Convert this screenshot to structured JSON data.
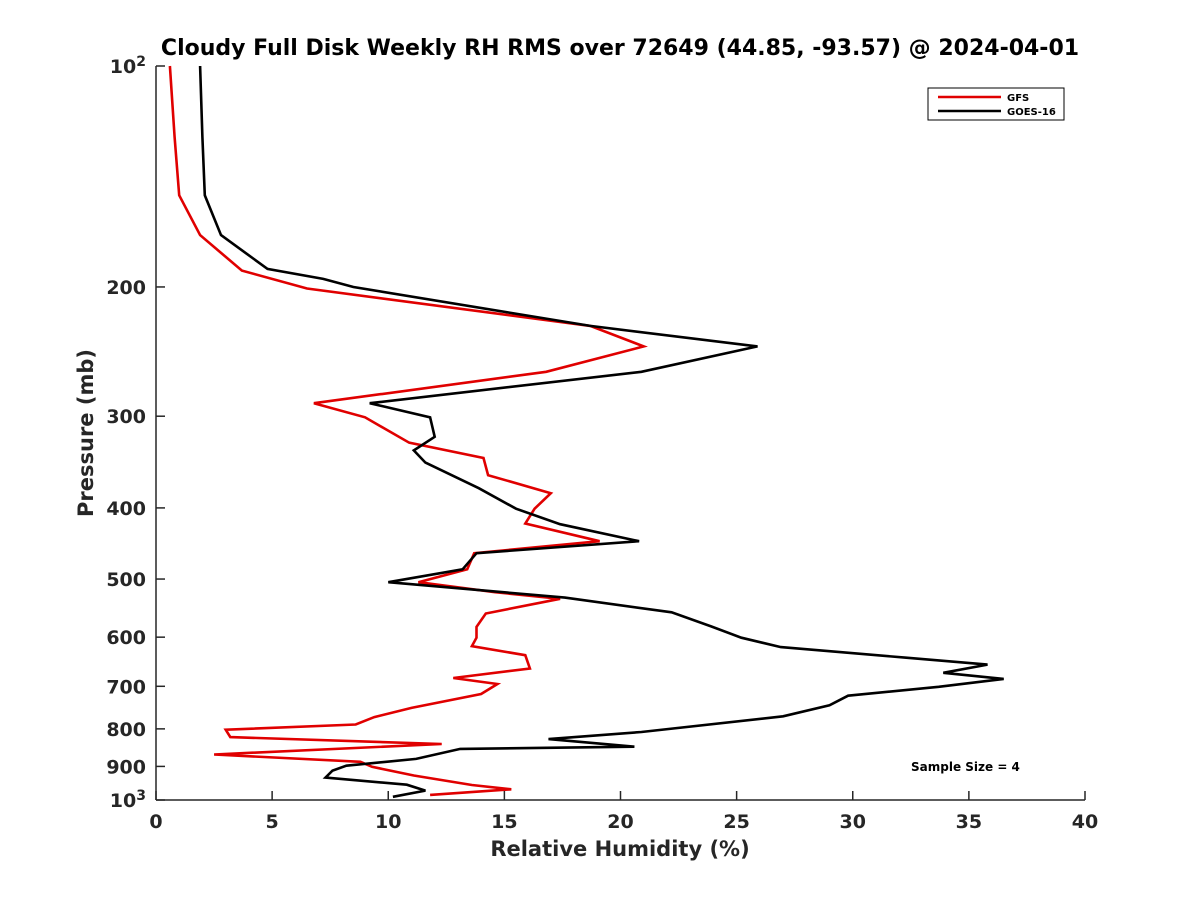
{
  "chart_data": {
    "type": "line",
    "title": "Cloudy Full Disk Weekly RH RMS over 72649 (44.85, -93.57) @ 2024-04-01",
    "xlabel": "Relative Humidity (%)",
    "ylabel": "Pressure (mb)",
    "xlim": [
      0,
      40
    ],
    "ylim": [
      100,
      1000
    ],
    "y_scale": "log",
    "y_reversed": true,
    "grid": false,
    "legend_position": "top-right",
    "annotation": "Sample Size = 4",
    "x_ticks": [
      "0",
      "5",
      "10",
      "15",
      "20",
      "25",
      "30",
      "35",
      "40"
    ],
    "y_ticks": [
      {
        "value": 100,
        "label": "10",
        "sup": "2"
      },
      {
        "value": 200,
        "label": "200",
        "sup": ""
      },
      {
        "value": 300,
        "label": "300",
        "sup": ""
      },
      {
        "value": 400,
        "label": "400",
        "sup": ""
      },
      {
        "value": 500,
        "label": "500",
        "sup": ""
      },
      {
        "value": 600,
        "label": "600",
        "sup": ""
      },
      {
        "value": 700,
        "label": "700",
        "sup": ""
      },
      {
        "value": 800,
        "label": "800",
        "sup": ""
      },
      {
        "value": 900,
        "label": "900",
        "sup": ""
      },
      {
        "value": 1000,
        "label": "10",
        "sup": "3"
      }
    ],
    "series": [
      {
        "name": "GFS",
        "color": "#e00000",
        "points": [
          [
            0.6,
            100
          ],
          [
            0.8,
            125
          ],
          [
            1.0,
            150
          ],
          [
            1.9,
            170
          ],
          [
            3.7,
            190
          ],
          [
            6.5,
            201
          ],
          [
            18.7,
            226
          ],
          [
            21.0,
            241
          ],
          [
            16.8,
            261
          ],
          [
            6.8,
            288
          ],
          [
            9.0,
            301
          ],
          [
            10.9,
            326
          ],
          [
            14.1,
            342
          ],
          [
            14.3,
            361
          ],
          [
            17.0,
            382
          ],
          [
            16.3,
            401
          ],
          [
            15.9,
            420
          ],
          [
            19.1,
            444
          ],
          [
            13.7,
            461
          ],
          [
            13.4,
            485
          ],
          [
            11.3,
            505
          ],
          [
            14.6,
            521
          ],
          [
            17.4,
            532
          ],
          [
            14.2,
            557
          ],
          [
            13.8,
            581
          ],
          [
            13.8,
            601
          ],
          [
            13.6,
            617
          ],
          [
            15.9,
            635
          ],
          [
            16.1,
            662
          ],
          [
            12.8,
            682
          ],
          [
            14.7,
            695
          ],
          [
            14.0,
            717
          ],
          [
            11.0,
            749
          ],
          [
            9.4,
            771
          ],
          [
            8.6,
            789
          ],
          [
            3.0,
            802
          ],
          [
            3.2,
            821
          ],
          [
            12.3,
            839
          ],
          [
            2.5,
            867
          ],
          [
            8.8,
            887
          ],
          [
            9.3,
            901
          ],
          [
            11.1,
            926
          ],
          [
            13.6,
            954
          ],
          [
            15.3,
            967
          ],
          [
            11.8,
            984
          ]
        ]
      },
      {
        "name": "GOES-16",
        "color": "#000000",
        "points": [
          [
            1.9,
            100
          ],
          [
            2.0,
            125
          ],
          [
            2.1,
            150
          ],
          [
            2.8,
            170
          ],
          [
            4.8,
            189
          ],
          [
            7.2,
            195
          ],
          [
            8.5,
            200
          ],
          [
            18.7,
            226
          ],
          [
            25.9,
            241
          ],
          [
            20.9,
            261
          ],
          [
            9.2,
            288
          ],
          [
            11.8,
            301
          ],
          [
            12.0,
            320
          ],
          [
            11.1,
            334
          ],
          [
            11.6,
            347
          ],
          [
            13.9,
            376
          ],
          [
            15.5,
            401
          ],
          [
            17.4,
            421
          ],
          [
            20.8,
            444
          ],
          [
            13.8,
            461
          ],
          [
            13.2,
            485
          ],
          [
            10.0,
            505
          ],
          [
            17.6,
            530
          ],
          [
            22.2,
            555
          ],
          [
            23.9,
            580
          ],
          [
            25.2,
            601
          ],
          [
            26.9,
            619
          ],
          [
            32.3,
            640
          ],
          [
            35.8,
            654
          ],
          [
            33.9,
            671
          ],
          [
            36.5,
            684
          ],
          [
            33.7,
            701
          ],
          [
            29.8,
            721
          ],
          [
            29.0,
            743
          ],
          [
            27.0,
            769
          ],
          [
            20.9,
            808
          ],
          [
            16.9,
            826
          ],
          [
            20.6,
            846
          ],
          [
            13.1,
            852
          ],
          [
            11.2,
            879
          ],
          [
            8.2,
            898
          ],
          [
            7.6,
            912
          ],
          [
            7.3,
            932
          ],
          [
            10.8,
            953
          ],
          [
            11.6,
            971
          ],
          [
            10.2,
            990
          ]
        ]
      }
    ]
  }
}
